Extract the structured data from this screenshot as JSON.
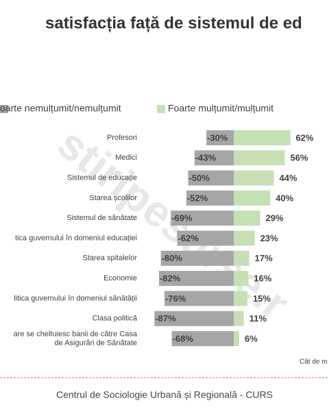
{
  "chart_data": {
    "type": "diverging-bar",
    "title": "satisfacția față de sistemul de ed",
    "categories": [
      "Profesori",
      "Medici",
      "Sistemul de educație",
      "Starea școlilor",
      "Sistemul de sănătate",
      "tica guvernului în domeniul educației",
      "Starea spitalelor",
      "Economie",
      "litica guvernului în domeniul sănătății",
      "Clasa politică",
      "are se cheltuiesc banii de către Casa\nde Asigurări de Sănătate"
    ],
    "series": [
      {
        "name": "oarte nemulțumit/nemulțumit",
        "color": "#a6a6a6",
        "values": [
          -30,
          -43,
          -50,
          -52,
          -69,
          -62,
          -80,
          -82,
          -76,
          -87,
          -68
        ],
        "value_labels": [
          "-30%",
          "-43%",
          "-50%",
          "-52%",
          "-69%",
          "-62%",
          "-80%",
          "-82%",
          "-76%",
          "-87%",
          "-68%"
        ]
      },
      {
        "name": "Foarte mulțumit/mulțumit",
        "color": "#c5e0b4",
        "values": [
          62,
          56,
          44,
          40,
          29,
          23,
          17,
          16,
          15,
          11,
          6
        ],
        "value_labels": [
          "62%",
          "56%",
          "44%",
          "40%",
          "29%",
          "23%",
          "17%",
          "16%",
          "15%",
          "11%",
          "6%"
        ]
      }
    ],
    "note": "Cât de m",
    "footer": "Centrul de Sociologie Urbană și Regională - CURS",
    "watermark": "stiripesurse.r"
  }
}
